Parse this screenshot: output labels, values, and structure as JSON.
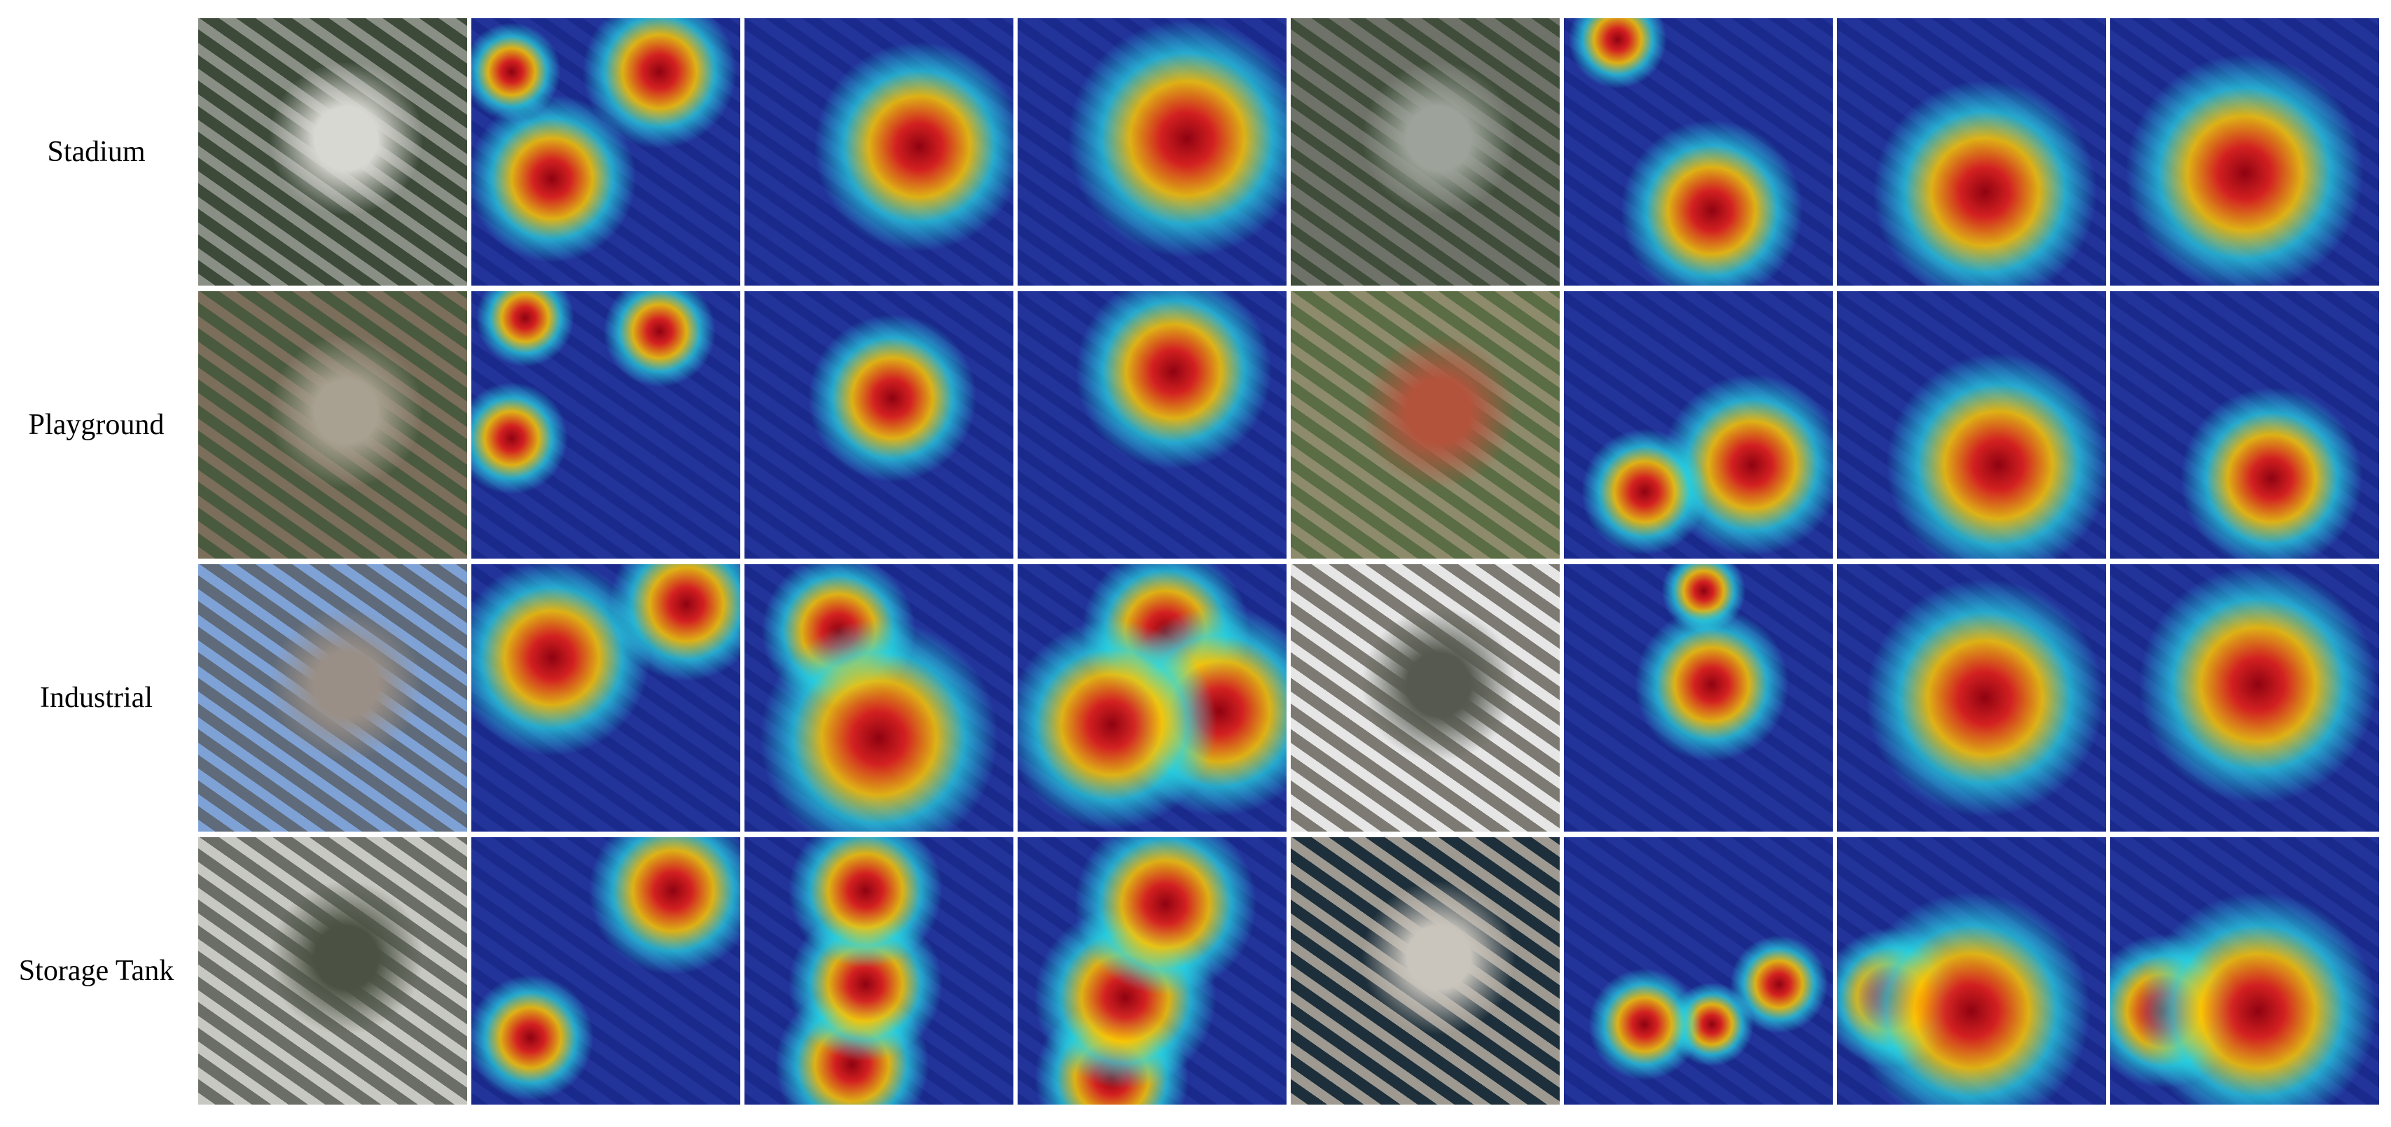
{
  "row_labels": [
    "Stadium",
    "Playground",
    "Industrial",
    "Storage Tank"
  ]
}
